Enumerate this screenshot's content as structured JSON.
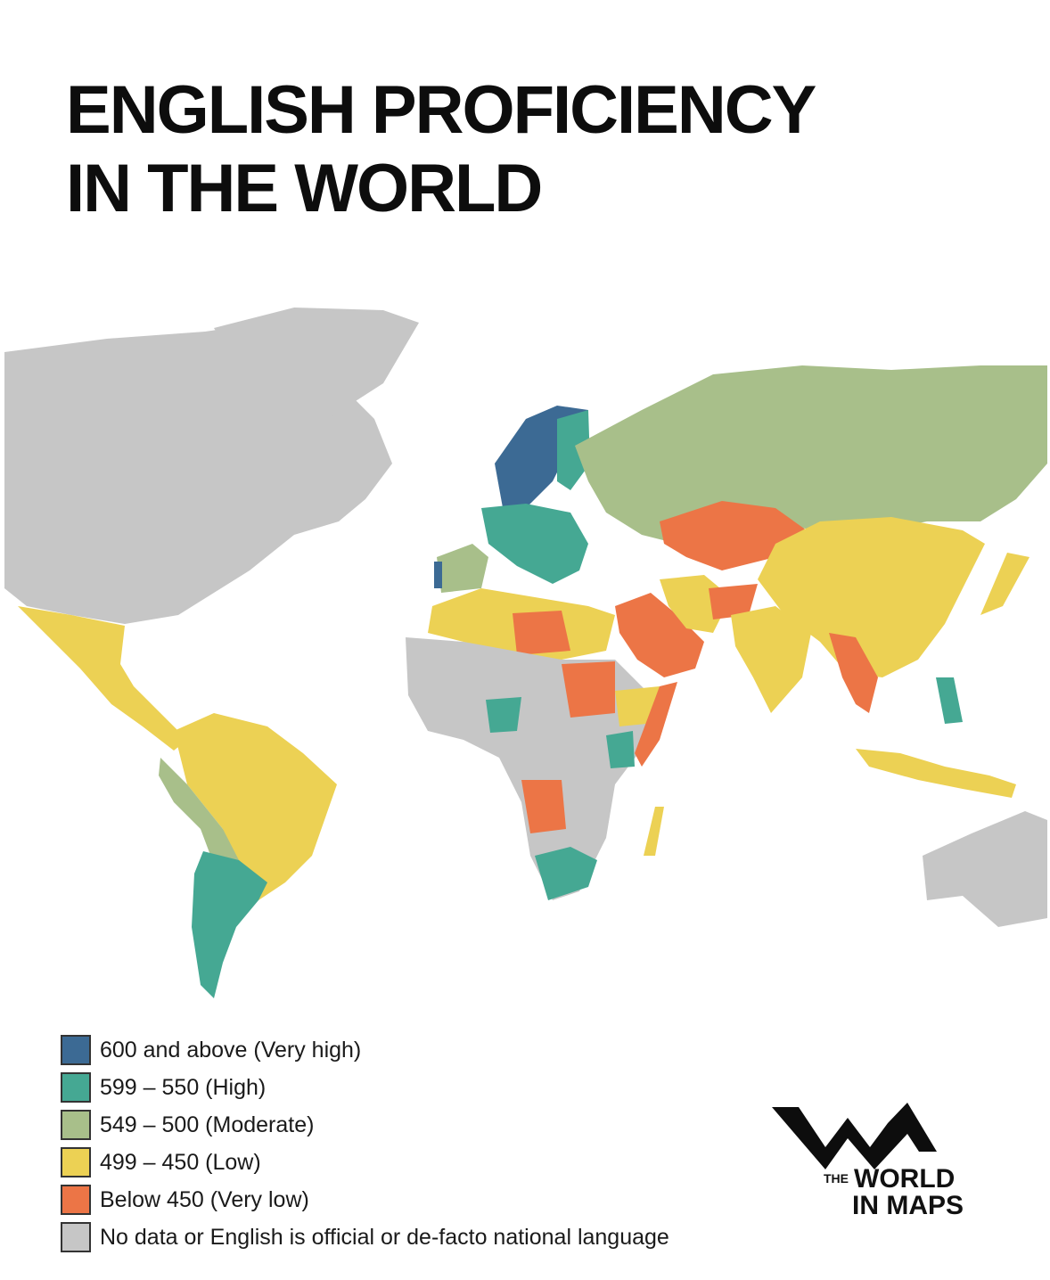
{
  "title": {
    "line1": "ENGLISH PROFICIENCY",
    "line2": "IN THE WORLD"
  },
  "colors": {
    "very_high": "#3c6a94",
    "high": "#45a893",
    "moderate": "#a8bf8a",
    "low": "#ecd154",
    "very_low": "#ec7546",
    "no_data": "#c6c6c6"
  },
  "map": {
    "regions": [
      {
        "name": "Canada / USA / Greenland",
        "level": "no_data"
      },
      {
        "name": "Mexico & Central America",
        "level": "low"
      },
      {
        "name": "Brazil & northern South America",
        "level": "low"
      },
      {
        "name": "Andean South America",
        "level": "moderate"
      },
      {
        "name": "Argentina & Chile",
        "level": "high"
      },
      {
        "name": "Scandinavia",
        "level": "very_high"
      },
      {
        "name": "Central Europe",
        "level": "high"
      },
      {
        "name": "Iberia",
        "level": "moderate"
      },
      {
        "name": "Russia",
        "level": "moderate"
      },
      {
        "name": "Central Asia",
        "level": "very_low"
      },
      {
        "name": "China & East Asia",
        "level": "low"
      },
      {
        "name": "Middle East",
        "level": "very_low"
      },
      {
        "name": "India",
        "level": "low"
      },
      {
        "name": "North Africa",
        "level": "low"
      },
      {
        "name": "Sub-Saharan Africa",
        "level": "no_data"
      },
      {
        "name": "South Africa",
        "level": "high"
      },
      {
        "name": "Australia",
        "level": "no_data"
      }
    ]
  },
  "legend": [
    {
      "label": "600 and above (Very high)",
      "color": "#3c6a94"
    },
    {
      "label": "599 – 550 (High)",
      "color": "#45a893"
    },
    {
      "label": "549 – 500 (Moderate)",
      "color": "#a8bf8a"
    },
    {
      "label": "499 – 450 (Low)",
      "color": "#ecd154"
    },
    {
      "label": "Below 450 (Very low)",
      "color": "#ec7546"
    },
    {
      "label": "No data or English is official or de-facto national language",
      "color": "#c6c6c6"
    }
  ],
  "logo": {
    "the": "THE",
    "line1": "WORLD",
    "line2": "IN MAPS"
  }
}
